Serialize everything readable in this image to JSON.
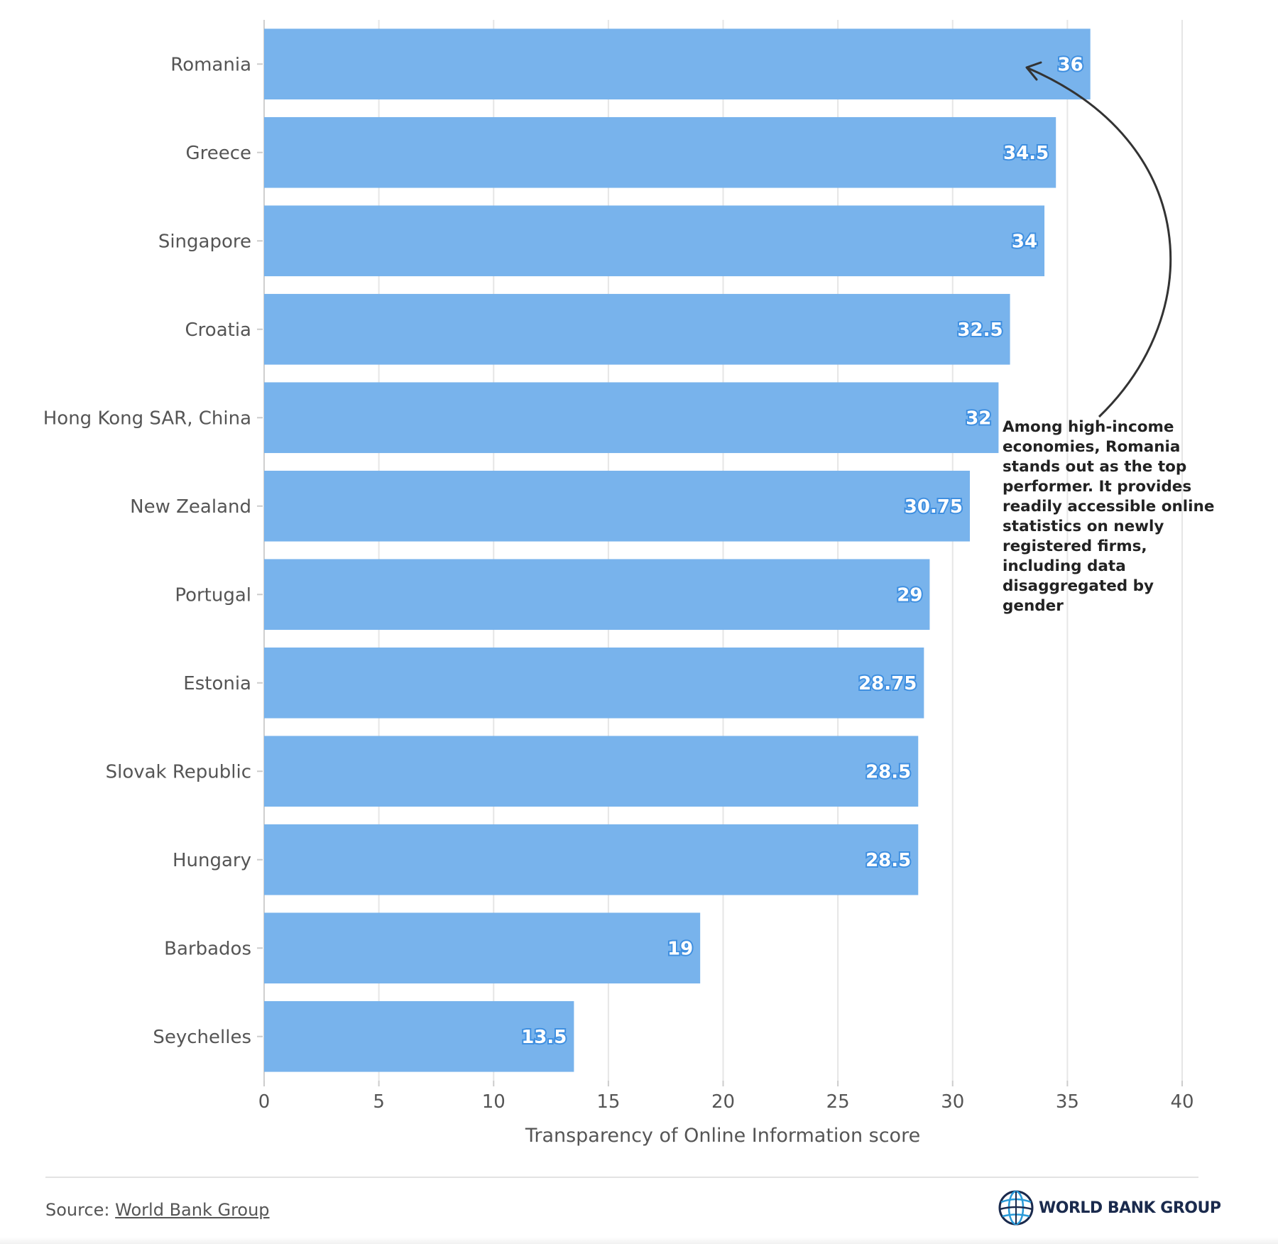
{
  "chart_data": {
    "type": "bar",
    "orientation": "horizontal",
    "categories": [
      "Romania",
      "Greece",
      "Singapore",
      "Croatia",
      "Hong Kong SAR, China",
      "New Zealand",
      "Portugal",
      "Estonia",
      "Slovak Republic",
      "Hungary",
      "Barbados",
      "Seychelles"
    ],
    "values": [
      36,
      34.5,
      34,
      32.5,
      32,
      30.75,
      29,
      28.75,
      28.5,
      28.5,
      19,
      13.5
    ],
    "value_labels": [
      "36",
      "34.5",
      "34",
      "32.5",
      "32",
      "30.75",
      "29",
      "28.75",
      "28.5",
      "28.5",
      "19",
      "13.5"
    ],
    "xlim": [
      0,
      40
    ],
    "xticks": [
      "0",
      "5",
      "10",
      "15",
      "20",
      "25",
      "30",
      "35",
      "40"
    ],
    "xlabel": "Transparency of Online Information score",
    "ylabel": "",
    "grid": true,
    "bar_color": "#78b3ec",
    "annotation": "Among high-income economies, Romania stands out as the top performer. It provides readily accessible online statistics on newly registered firms, including data disaggregated by gender"
  },
  "footer": {
    "source_prefix": "Source: ",
    "source_link": "World Bank Group",
    "logo_text": "WORLD BANK GROUP"
  }
}
